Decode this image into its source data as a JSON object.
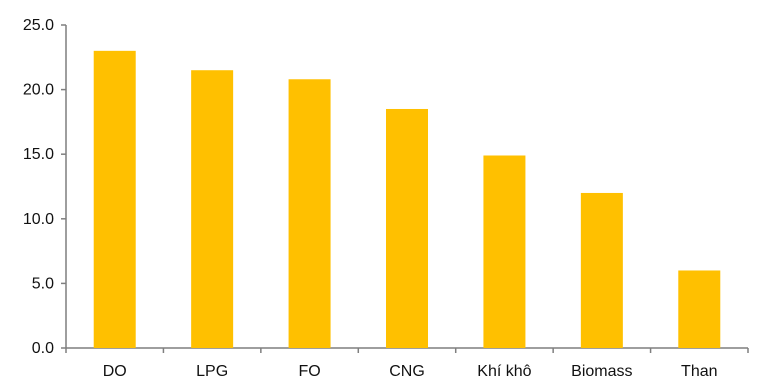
{
  "chart_data": {
    "type": "bar",
    "title": "",
    "xlabel": "",
    "ylabel": "",
    "categories": [
      "DO",
      "LPG",
      "FO",
      "CNG",
      "Khí khô",
      "Biomass",
      "Than"
    ],
    "values": [
      23.0,
      21.5,
      20.8,
      18.5,
      14.9,
      12.0,
      6.0
    ],
    "ylim": [
      0,
      25
    ],
    "yticks": [
      "0.0",
      "5.0",
      "10.0",
      "15.0",
      "20.0",
      "25.0"
    ],
    "grid": false,
    "legend": "none",
    "bar_color": "#FFC000",
    "axis_color": "#7f7f7f"
  }
}
